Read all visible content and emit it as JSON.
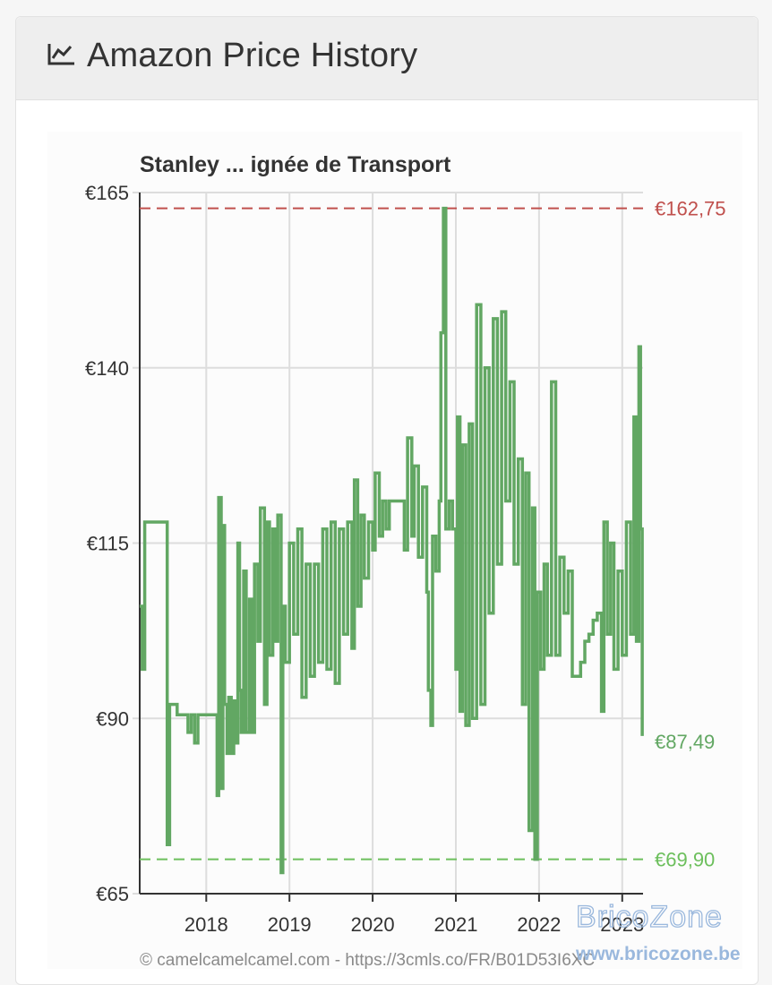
{
  "header": {
    "title": "Amazon Price History",
    "icon": "chart-line-icon"
  },
  "watermark": {
    "line1": "BricoZone",
    "line2": "www.bricozone.be",
    "color": "#9ab8dd"
  },
  "chart_data": {
    "type": "line",
    "title": "Stanley ... ignée de Transport",
    "credit": "© camelcamelcamel.com - https://3cmls.co/FR/B01D53I6XC",
    "xlabel": "",
    "ylabel": "",
    "x_range": [
      2017.2,
      2023.25
    ],
    "ylim": [
      65,
      165
    ],
    "y_ticks": [
      65,
      90,
      115,
      140,
      165
    ],
    "y_tick_labels": [
      "€65",
      "€90",
      "€115",
      "€140",
      "€165"
    ],
    "x_ticks": [
      2018,
      2019,
      2020,
      2021,
      2022,
      2023
    ],
    "x_tick_labels": [
      "2018",
      "2019",
      "2020",
      "2021",
      "2022",
      "2023"
    ],
    "grid": true,
    "colors": {
      "series": "#62a763",
      "high": "#c0504d",
      "low": "#6cbf5c",
      "grid": "#dddddd"
    },
    "reference_lines": [
      {
        "value": 162.75,
        "label": "€162,75",
        "color": "#c0504d"
      },
      {
        "value": 69.9,
        "label": "€69,90",
        "color": "#6cbf5c"
      }
    ],
    "current": {
      "value": 87.49,
      "label": "€87,49",
      "color": "#62a763"
    },
    "series": [
      {
        "step": true,
        "points": [
          [
            2017.2,
            106
          ],
          [
            2017.23,
            97
          ],
          [
            2017.26,
            118
          ],
          [
            2017.5,
            118
          ],
          [
            2017.53,
            72
          ],
          [
            2017.56,
            92
          ],
          [
            2017.65,
            90.5
          ],
          [
            2017.78,
            88
          ],
          [
            2017.82,
            90.5
          ],
          [
            2017.86,
            86.5
          ],
          [
            2017.9,
            90.5
          ],
          [
            2018.12,
            90.5
          ],
          [
            2018.13,
            79
          ],
          [
            2018.15,
            121.5
          ],
          [
            2018.18,
            80
          ],
          [
            2018.2,
            117.5
          ],
          [
            2018.22,
            92
          ],
          [
            2018.25,
            85
          ],
          [
            2018.27,
            93
          ],
          [
            2018.3,
            85
          ],
          [
            2018.33,
            92.5
          ],
          [
            2018.36,
            86.5
          ],
          [
            2018.38,
            115
          ],
          [
            2018.4,
            94
          ],
          [
            2018.42,
            88
          ],
          [
            2018.45,
            111
          ],
          [
            2018.48,
            88
          ],
          [
            2018.52,
            107
          ],
          [
            2018.55,
            88
          ],
          [
            2018.58,
            112
          ],
          [
            2018.62,
            101
          ],
          [
            2018.65,
            120
          ],
          [
            2018.7,
            92
          ],
          [
            2018.73,
            118
          ],
          [
            2018.76,
            99
          ],
          [
            2018.8,
            117
          ],
          [
            2018.83,
            101
          ],
          [
            2018.86,
            119
          ],
          [
            2018.9,
            68
          ],
          [
            2018.92,
            106
          ],
          [
            2018.95,
            98
          ],
          [
            2019.0,
            115
          ],
          [
            2019.05,
            102
          ],
          [
            2019.1,
            117
          ],
          [
            2019.15,
            93
          ],
          [
            2019.2,
            112
          ],
          [
            2019.25,
            96
          ],
          [
            2019.3,
            112
          ],
          [
            2019.35,
            98
          ],
          [
            2019.4,
            117
          ],
          [
            2019.45,
            97
          ],
          [
            2019.5,
            118
          ],
          [
            2019.55,
            95
          ],
          [
            2019.6,
            117
          ],
          [
            2019.65,
            102
          ],
          [
            2019.7,
            118
          ],
          [
            2019.75,
            100
          ],
          [
            2019.78,
            124
          ],
          [
            2019.82,
            106
          ],
          [
            2019.86,
            119
          ],
          [
            2019.9,
            110
          ],
          [
            2019.95,
            118
          ],
          [
            2020.0,
            114
          ],
          [
            2020.03,
            125
          ],
          [
            2020.08,
            116
          ],
          [
            2020.12,
            121
          ],
          [
            2020.16,
            117
          ],
          [
            2020.2,
            121
          ],
          [
            2020.35,
            121
          ],
          [
            2020.38,
            114
          ],
          [
            2020.42,
            130
          ],
          [
            2020.47,
            116
          ],
          [
            2020.5,
            126
          ],
          [
            2020.55,
            113
          ],
          [
            2020.6,
            123
          ],
          [
            2020.65,
            108
          ],
          [
            2020.67,
            94
          ],
          [
            2020.7,
            89
          ],
          [
            2020.72,
            116
          ],
          [
            2020.76,
            111
          ],
          [
            2020.8,
            121
          ],
          [
            2020.82,
            145
          ],
          [
            2020.85,
            162.75
          ],
          [
            2020.88,
            117
          ],
          [
            2020.92,
            121
          ],
          [
            2020.96,
            117
          ],
          [
            2021.0,
            97
          ],
          [
            2021.02,
            133
          ],
          [
            2021.05,
            91
          ],
          [
            2021.08,
            129
          ],
          [
            2021.12,
            89
          ],
          [
            2021.16,
            132
          ],
          [
            2021.2,
            90
          ],
          [
            2021.25,
            149
          ],
          [
            2021.3,
            92
          ],
          [
            2021.35,
            140
          ],
          [
            2021.4,
            105
          ],
          [
            2021.45,
            147
          ],
          [
            2021.5,
            112
          ],
          [
            2021.55,
            148
          ],
          [
            2021.6,
            121
          ],
          [
            2021.65,
            138
          ],
          [
            2021.7,
            112
          ],
          [
            2021.75,
            127
          ],
          [
            2021.8,
            92
          ],
          [
            2021.84,
            125
          ],
          [
            2021.88,
            74
          ],
          [
            2021.92,
            120
          ],
          [
            2021.95,
            69.9
          ],
          [
            2021.98,
            108
          ],
          [
            2022.02,
            97
          ],
          [
            2022.06,
            112
          ],
          [
            2022.1,
            99
          ],
          [
            2022.15,
            138
          ],
          [
            2022.2,
            99
          ],
          [
            2022.25,
            113
          ],
          [
            2022.3,
            105
          ],
          [
            2022.35,
            111
          ],
          [
            2022.4,
            96
          ],
          [
            2022.5,
            98
          ],
          [
            2022.55,
            101
          ],
          [
            2022.6,
            102
          ],
          [
            2022.65,
            104
          ],
          [
            2022.7,
            105
          ],
          [
            2022.75,
            91
          ],
          [
            2022.78,
            118
          ],
          [
            2022.82,
            102
          ],
          [
            2022.86,
            115
          ],
          [
            2022.9,
            97
          ],
          [
            2022.95,
            111
          ],
          [
            2023.0,
            99
          ],
          [
            2023.05,
            118
          ],
          [
            2023.1,
            102
          ],
          [
            2023.14,
            133
          ],
          [
            2023.17,
            101
          ],
          [
            2023.2,
            143
          ],
          [
            2023.22,
            117
          ],
          [
            2023.24,
            87.49
          ]
        ]
      }
    ]
  }
}
